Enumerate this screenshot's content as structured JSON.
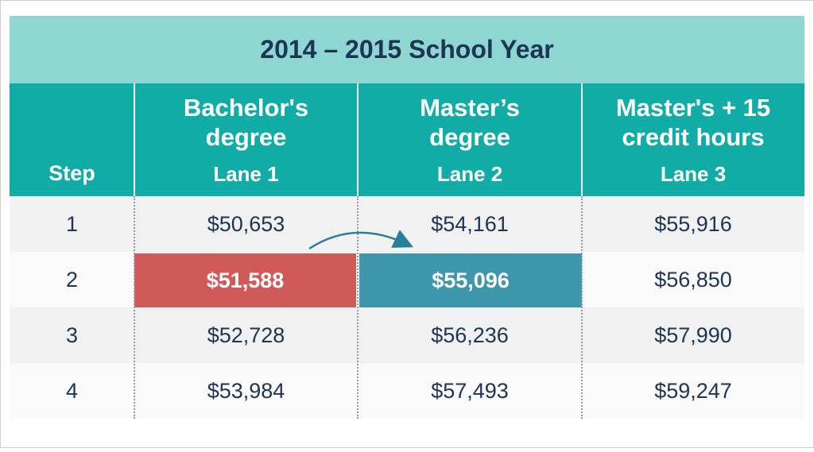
{
  "title": "2014 – 2015 School Year",
  "header": [
    {
      "lines": [
        "Step"
      ]
    },
    {
      "lines": [
        "Bachelor's",
        "degree"
      ],
      "lane": "Lane 1"
    },
    {
      "lines": [
        "Master’s",
        "degree"
      ],
      "lane": "Lane 2"
    },
    {
      "lines": [
        "Master's + 15",
        "credit hours"
      ],
      "lane": "Lane 3"
    }
  ],
  "table": {
    "rows": [
      [
        "1",
        "$50,653",
        "$54,161",
        "$55,916"
      ],
      [
        "2",
        "$51,588",
        "$55,096",
        "$56,850"
      ],
      [
        "3",
        "$52,728",
        "$56,236",
        "$57,990"
      ],
      [
        "4",
        "$53,984",
        "$57,493",
        "$59,247"
      ]
    ]
  }
}
